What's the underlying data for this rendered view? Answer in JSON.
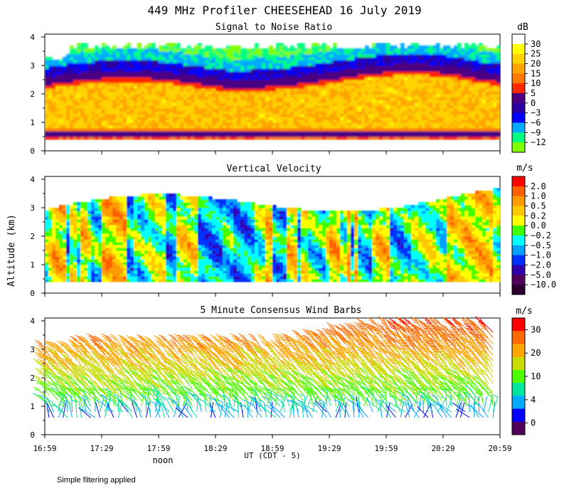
{
  "figure": {
    "title": "449 MHz Profiler CHEESEHEAD 16 July 2019",
    "ylabel": "Altitude (km)",
    "xlabel": "UT  (CDT - 5)",
    "noon_label": "noon",
    "footnote": "Simple filtering applied",
    "x_ticks": [
      "16:59",
      "17:29",
      "17:59",
      "18:29",
      "18:59",
      "19:29",
      "19:59",
      "20:29",
      "20:59"
    ],
    "y_ticks": [
      "0",
      "1",
      "2",
      "3",
      "4"
    ]
  },
  "chart_data": [
    {
      "type": "heatmap",
      "title": "Signal to Noise Ratio",
      "unit": "dB",
      "xlabel": "UT  (CDT - 5)",
      "ylabel": "Altitude (km)",
      "xlim": [
        "16:59",
        "20:59"
      ],
      "ylim": [
        0,
        4
      ],
      "colorbar": {
        "ticks": [
          "30",
          "25",
          "20",
          "15",
          "10",
          "5",
          "0",
          "−3",
          "−6",
          "−9",
          "−12"
        ],
        "colors": [
          "#ffffff",
          "#ffff00",
          "#ffd200",
          "#ffa500",
          "#ff7800",
          "#ff2800",
          "#4b0082",
          "#2a00a0",
          "#0000ff",
          "#00aaff",
          "#00ff80",
          "#80ff00"
        ]
      },
      "features": {
        "min_height_km": 0.4,
        "top_height_km": 3.8,
        "high_snr_band_km": [
          0.9,
          2.1
        ],
        "boundary_layer_top_km": [
          2.1,
          2.6
        ]
      }
    },
    {
      "type": "heatmap",
      "title": "Vertical Velocity",
      "unit": "m/s",
      "xlabel": "UT  (CDT - 5)",
      "ylabel": "Altitude (km)",
      "xlim": [
        "16:59",
        "20:59"
      ],
      "ylim": [
        0,
        4
      ],
      "colorbar": {
        "ticks": [
          "2.0",
          "1.0",
          "0.5",
          "0.2",
          "0.0",
          "−0.2",
          "−0.5",
          "−1.0",
          "−2.0",
          "−5.0",
          "−10.0"
        ],
        "colors": [
          "#ff0000",
          "#ff6000",
          "#ff9a00",
          "#ffc800",
          "#ffff00",
          "#40ff00",
          "#00ffff",
          "#00a0ff",
          "#0030ff",
          "#3000b0",
          "#50005a",
          "#2a0030"
        ]
      }
    },
    {
      "type": "wind-barbs",
      "title": "5 Minute Consensus Wind Barbs",
      "unit": "m/s",
      "xlabel": "UT  (CDT - 5)",
      "ylabel": "Altitude (km)",
      "xlim": [
        "16:59",
        "20:59"
      ],
      "ylim": [
        0,
        4
      ],
      "colorbar": {
        "ticks": [
          "30",
          "20",
          "10",
          "4",
          "0"
        ],
        "colors": [
          "#ff0000",
          "#ff6a00",
          "#ffa500",
          "#c8dc00",
          "#50ff00",
          "#00e6a0",
          "#00aaff",
          "#0000ff",
          "#50005a"
        ]
      }
    }
  ]
}
